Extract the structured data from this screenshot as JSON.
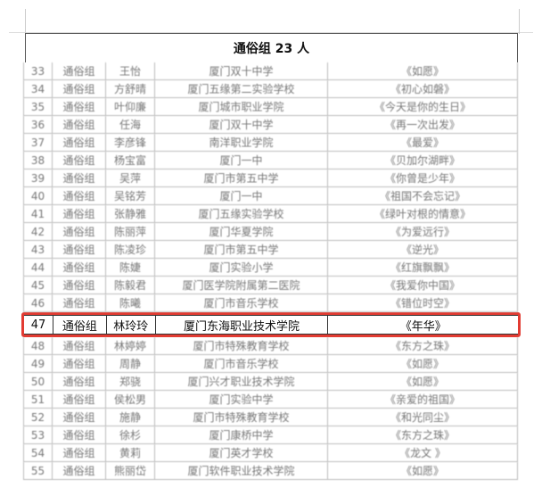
{
  "title": "通俗组 23 人",
  "highlight_color": "#e23b32",
  "rows": [
    {
      "no": "33",
      "group": "通俗组",
      "name": "王怡",
      "school": "厦门双十中学",
      "song": "《如愿》"
    },
    {
      "no": "34",
      "group": "通俗组",
      "name": "方舒晴",
      "school": "厦门五缘第二实验学校",
      "song": "《初心如磐》"
    },
    {
      "no": "35",
      "group": "通俗组",
      "name": "叶仰廉",
      "school": "厦门城市职业学院",
      "song": "《今天是你的生日》"
    },
    {
      "no": "36",
      "group": "通俗组",
      "name": "任海",
      "school": "厦门双十中学",
      "song": "《再一次出发》"
    },
    {
      "no": "37",
      "group": "通俗组",
      "name": "李彦锋",
      "school": "南洋职业学院",
      "song": "《最爱》"
    },
    {
      "no": "38",
      "group": "通俗组",
      "name": "杨宝富",
      "school": "厦门一中",
      "song": "《贝加尔湖畔》"
    },
    {
      "no": "39",
      "group": "通俗组",
      "name": "吴萍",
      "school": "厦门市第五中学",
      "song": "《你曾是少年》"
    },
    {
      "no": "40",
      "group": "通俗组",
      "name": "吴铭芳",
      "school": "厦门一中",
      "song": "《祖国不会忘记》"
    },
    {
      "no": "41",
      "group": "通俗组",
      "name": "张静雅",
      "school": "厦门五缘实验学校",
      "song": "《绿叶对根的情意》"
    },
    {
      "no": "42",
      "group": "通俗组",
      "name": "陈丽萍",
      "school": "厦门华夏学院",
      "song": "《为爱远行》"
    },
    {
      "no": "43",
      "group": "通俗组",
      "name": "陈凌珍",
      "school": "厦门市第五中学",
      "song": "《逆光》"
    },
    {
      "no": "44",
      "group": "通俗组",
      "name": "陈婕",
      "school": "厦门实验小学",
      "song": "《红旗飘飘》"
    },
    {
      "no": "45",
      "group": "通俗组",
      "name": "陈毅君",
      "school": "厦门医学院附属第二医院",
      "song": "《我爱你中国》"
    },
    {
      "no": "46",
      "group": "通俗组",
      "name": "陈曦",
      "school": "厦门市音乐学校",
      "song": "《错位时空》"
    },
    {
      "no": "47",
      "group": "通俗组",
      "name": "林玲玲",
      "school": "厦门东海职业技术学院",
      "song": "《年华》"
    },
    {
      "no": "48",
      "group": "通俗组",
      "name": "林婷婷",
      "school": "厦门市特殊教育学校",
      "song": "《东方之珠》"
    },
    {
      "no": "49",
      "group": "通俗组",
      "name": "周静",
      "school": "厦门市音乐学校",
      "song": "《如愿》"
    },
    {
      "no": "50",
      "group": "通俗组",
      "name": "郑骁",
      "school": "厦门兴才职业技术学院",
      "song": "《如愿》"
    },
    {
      "no": "51",
      "group": "通俗组",
      "name": "侯松男",
      "school": "厦门实验中学",
      "song": "《亲爱的祖国》"
    },
    {
      "no": "52",
      "group": "通俗组",
      "name": "施静",
      "school": "厦门市特殊教育学校",
      "song": "《和光同尘》"
    },
    {
      "no": "53",
      "group": "通俗组",
      "name": "徐杉",
      "school": "厦门康桥中学",
      "song": "《东方之珠》"
    },
    {
      "no": "54",
      "group": "通俗组",
      "name": "黄莉",
      "school": "厦门英才学校",
      "song": "《龙文 》"
    },
    {
      "no": "55",
      "group": "通俗组",
      "name": "熊丽岱",
      "school": "厦门软件职业技术学院",
      "song": "《如愿》"
    }
  ],
  "highlighted_row": {
    "no": "47",
    "group": "通俗组",
    "name": "林玲玲",
    "school": "厦门东海职业技术学院",
    "song": "《年华》"
  }
}
